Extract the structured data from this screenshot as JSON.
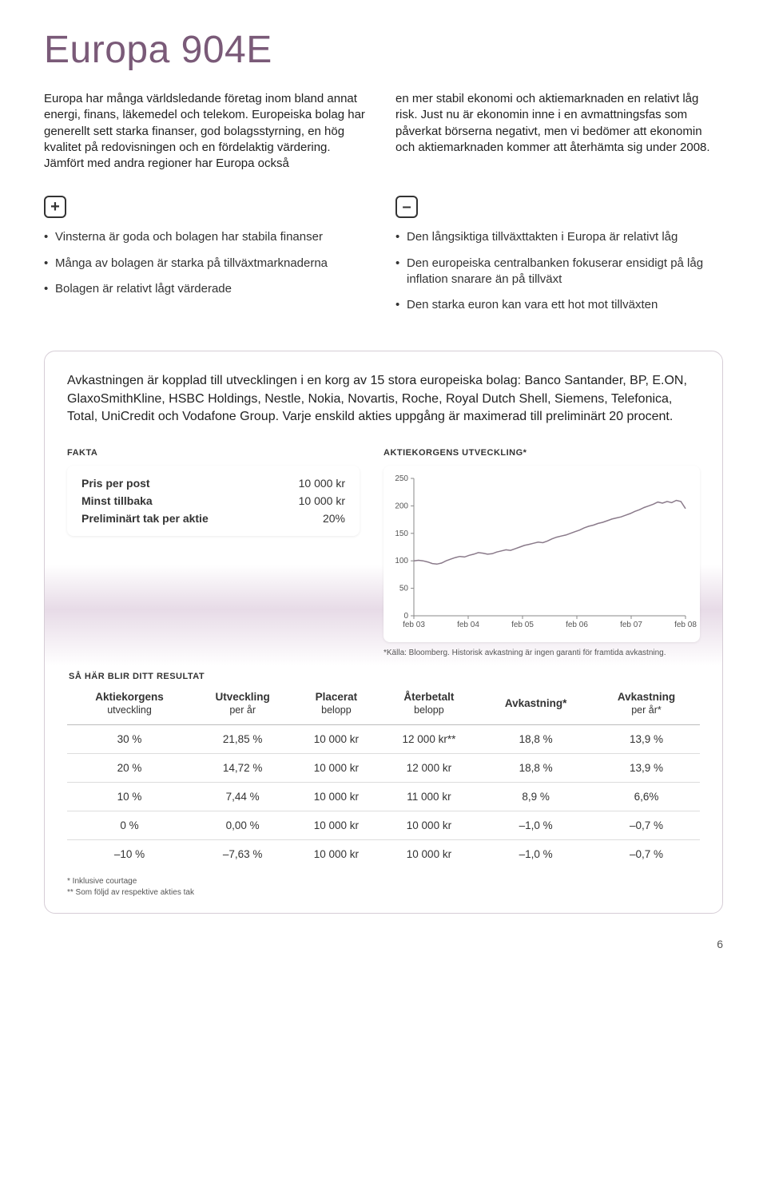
{
  "title": "Europa 904E",
  "intro": {
    "left": "Europa har många världsledande företag inom bland annat energi, finans, läkemedel och telekom. Europeiska bolag har generellt sett starka finanser, god bolagsstyrning, en hög kvalitet på redovisningen och en fördelaktig värdering. Jämfört med andra regioner har Europa också",
    "right": "en mer stabil ekonomi och aktiemarknaden en relativt låg risk. Just nu är ekonomin inne i en avmattningsfas som påverkat börserna negativt, men vi bedömer att ekonomin och aktiemarknaden kommer att återhämta sig under 2008."
  },
  "plus": [
    "Vinsterna är goda och bolagen har stabila finanser",
    "Många av bolagen är starka på tillväxtmarknaderna",
    "Bolagen är relativt lågt värderade"
  ],
  "minus": [
    "Den långsiktiga tillväxttakten i Europa är relativt låg",
    "Den europeiska centralbanken fokuserar ensidigt på låg inflation snarare än på tillväxt",
    "Den starka euron kan vara ett hot mot tillväxten"
  ],
  "box_desc": "Avkastningen är kopplad till utvecklingen i en korg av 15 stora europeiska bolag: Banco Santander, BP, E.ON, GlaxoSmithKline, HSBC Holdings, Nestle, Nokia, Novartis, Roche, Royal Dutch Shell, Siemens, Telefonica, Total, UniCredit och Vodafone Group. Varje enskild akties uppgång är maximerad till preliminärt 20 procent.",
  "fakta_label": "FAKTA",
  "fakta": [
    {
      "k": "Pris per post",
      "v": "10 000 kr"
    },
    {
      "k": "Minst tillbaka",
      "v": "10 000 kr"
    },
    {
      "k": "Preliminärt tak per aktie",
      "v": "20%"
    }
  ],
  "chart": {
    "label": "AKTIEKORGENS UTVECKLING*",
    "type": "line",
    "ylim": [
      0,
      250
    ],
    "yticks": [
      0,
      50,
      100,
      150,
      200,
      250
    ],
    "xlabels": [
      "feb 03",
      "feb 04",
      "feb 05",
      "feb 06",
      "feb 07",
      "feb 08"
    ],
    "values": [
      100,
      101,
      100,
      98,
      95,
      94,
      96,
      100,
      103,
      106,
      108,
      107,
      110,
      112,
      115,
      114,
      112,
      113,
      116,
      118,
      120,
      119,
      122,
      125,
      128,
      130,
      132,
      134,
      133,
      136,
      140,
      143,
      145,
      147,
      150,
      153,
      156,
      160,
      163,
      165,
      168,
      170,
      173,
      176,
      178,
      180,
      183,
      186,
      190,
      193,
      197,
      200,
      203,
      207,
      205,
      208,
      206,
      210,
      208,
      195
    ],
    "line_color": "#8a7a8a",
    "line_width": 1.5,
    "grid_color": "#c8c8c8",
    "background_color": "#ffffff",
    "tick_fontsize": 10,
    "footnote": "*Källa: Bloomberg. Historisk avkastning är ingen garanti för framtida avkastning."
  },
  "result_label": "SÅ HÄR BLIR DITT RESULTAT",
  "result_headers": [
    [
      "Aktiekorgens",
      "utveckling"
    ],
    [
      "Utveckling",
      "per år"
    ],
    [
      "Placerat",
      "belopp"
    ],
    [
      "Återbetalt",
      "belopp"
    ],
    [
      "Avkastning*",
      ""
    ],
    [
      "Avkastning",
      "per år*"
    ]
  ],
  "result_rows": [
    [
      "30 %",
      "21,85 %",
      "10 000 kr",
      "12 000 kr**",
      "18,8 %",
      "13,9 %"
    ],
    [
      "20 %",
      "14,72 %",
      "10 000 kr",
      "12 000 kr",
      "18,8 %",
      "13,9 %"
    ],
    [
      "10 %",
      "7,44 %",
      "10 000 kr",
      "11 000 kr",
      "8,9 %",
      "6,6%"
    ],
    [
      "0 %",
      "0,00 %",
      "10 000 kr",
      "10 000 kr",
      "–1,0 %",
      "–0,7 %"
    ],
    [
      "–10 %",
      "–7,63 %",
      "10 000 kr",
      "10 000 kr",
      "–1,0 %",
      "–0,7 %"
    ]
  ],
  "table_footnotes": [
    "* Inklusive courtage",
    "** Som följd av respektive akties tak"
  ],
  "page_number": "6",
  "colors": {
    "heading": "#7a5a78",
    "box_border": "#d6cdd6",
    "gradient_mid": "#e7dbe7"
  }
}
